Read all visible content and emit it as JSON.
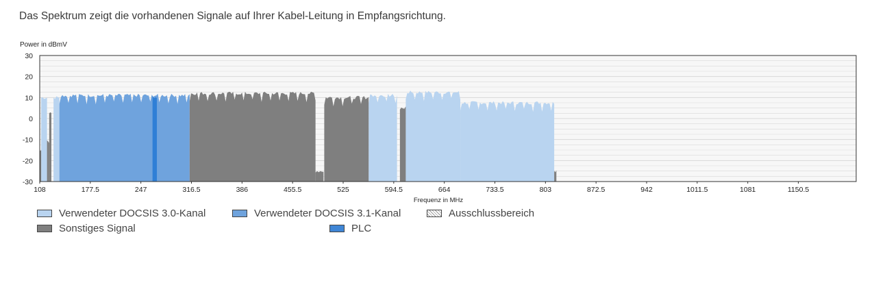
{
  "intro_text": "Das Spektrum zeigt die vorhandenen Signale auf Ihrer Kabel-Leitung in Empfangsrichtung.",
  "colors": {
    "docsis30": "#b9d4f0",
    "docsis31": "#6fa3dd",
    "other": "#7f7f7f",
    "plc": "#2f7fd6",
    "grid": "#d9d9d9",
    "plot_bg": "#f7f7f7"
  },
  "legend": [
    {
      "key": "docsis30",
      "label": "Verwendeter DOCSIS 3.0-Kanal"
    },
    {
      "key": "docsis31",
      "label": "Verwendeter DOCSIS 3.1-Kanal"
    },
    {
      "key": "exclusion",
      "label": "Ausschlussbereich"
    },
    {
      "key": "other",
      "label": "Sonstiges Signal"
    },
    {
      "key": "plc",
      "label": "PLC"
    }
  ],
  "chart_data": {
    "type": "area",
    "title": "",
    "xlabel": "Frequenz in MHz",
    "ylabel": "Power in dBmV",
    "xlim": [
      108,
      1230
    ],
    "ylim": [
      -30,
      30
    ],
    "x_ticks": [
      "108",
      "177.5",
      "247",
      "316.5",
      "386",
      "455.5",
      "525",
      "594.5",
      "664",
      "733.5",
      "803",
      "872.5",
      "942",
      "1011.5",
      "1081",
      "1150.5"
    ],
    "y_ticks": [
      "30",
      "20",
      "10",
      "0",
      "-10",
      "-20",
      "-30"
    ],
    "grid": true,
    "legend_position": "bottom",
    "series": [
      {
        "name": "Verwendeter DOCSIS 3.0-Kanal",
        "color_key": "docsis30",
        "bands": [
          {
            "start": 110,
            "end": 118,
            "level": 10
          },
          {
            "start": 127,
            "end": 135,
            "level": 10
          },
          {
            "start": 560,
            "end": 599,
            "level": 11
          },
          {
            "start": 611,
            "end": 686,
            "level": 12.5
          },
          {
            "start": 686,
            "end": 815,
            "level": 7.5
          }
        ]
      },
      {
        "name": "Verwendeter DOCSIS 3.1-Kanal",
        "color_key": "docsis31",
        "bands": [
          {
            "start": 135,
            "end": 314,
            "level": 11
          }
        ]
      },
      {
        "name": "Sonstiges Signal",
        "color_key": "other",
        "bands": [
          {
            "start": 108,
            "end": 110,
            "level": -15
          },
          {
            "start": 118,
            "end": 121,
            "level": -11
          },
          {
            "start": 121,
            "end": 124,
            "level": 3
          },
          {
            "start": 314,
            "end": 487,
            "level": 12
          },
          {
            "start": 487,
            "end": 498,
            "level": -25
          },
          {
            "start": 499,
            "end": 560,
            "level": 10
          },
          {
            "start": 603,
            "end": 611,
            "level": 5
          },
          {
            "start": 815,
            "end": 818,
            "level": -25
          }
        ]
      },
      {
        "name": "PLC",
        "color_key": "plc",
        "bands": [
          {
            "start": 263,
            "end": 269,
            "level": 10.5
          }
        ]
      }
    ]
  }
}
